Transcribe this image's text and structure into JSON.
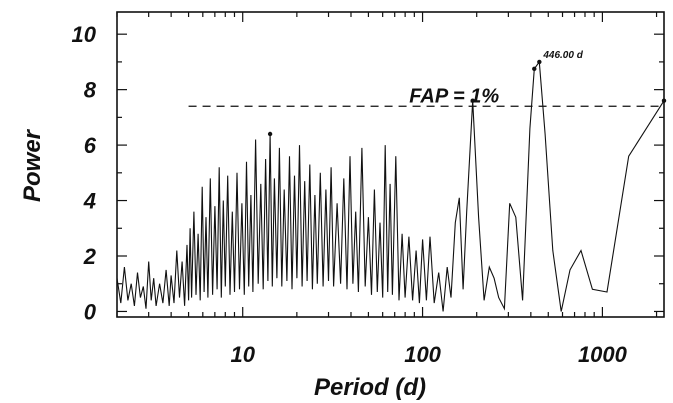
{
  "chart_data": {
    "type": "line",
    "title": "",
    "xlabel": "Period (d)",
    "ylabel": "Power",
    "x_scale": "log",
    "xlim": [
      2,
      2200
    ],
    "ylim": [
      -0.2,
      10.8
    ],
    "x_ticks": [
      {
        "value": 10,
        "label": "10"
      },
      {
        "value": 100,
        "label": "100"
      },
      {
        "value": 1000,
        "label": "1000"
      }
    ],
    "y_ticks": [
      {
        "value": 0,
        "label": "0"
      },
      {
        "value": 2,
        "label": "2"
      },
      {
        "value": 4,
        "label": "4"
      },
      {
        "value": 6,
        "label": "6"
      },
      {
        "value": 8,
        "label": "8"
      },
      {
        "value": 10,
        "label": "10"
      }
    ],
    "threshold": {
      "label": "FAP = 1%",
      "value": 7.4,
      "x_start": 5
    },
    "peak_annotation": {
      "label": "446.00 d",
      "x": 446,
      "y": 9.0
    },
    "series": [
      {
        "values": [
          [
            2.0,
            1.2
          ],
          [
            2.1,
            0.3
          ],
          [
            2.2,
            1.6
          ],
          [
            2.3,
            0.4
          ],
          [
            2.4,
            1.0
          ],
          [
            2.5,
            0.2
          ],
          [
            2.6,
            1.4
          ],
          [
            2.7,
            0.5
          ],
          [
            2.8,
            0.9
          ],
          [
            2.9,
            0.1
          ],
          [
            3.0,
            1.8
          ],
          [
            3.1,
            0.4
          ],
          [
            3.2,
            1.2
          ],
          [
            3.3,
            0.2
          ],
          [
            3.45,
            1.0
          ],
          [
            3.6,
            0.3
          ],
          [
            3.75,
            1.5
          ],
          [
            3.9,
            0.2
          ],
          [
            4.0,
            1.3
          ],
          [
            4.15,
            0.3
          ],
          [
            4.3,
            2.2
          ],
          [
            4.45,
            0.5
          ],
          [
            4.6,
            1.8
          ],
          [
            4.75,
            0.2
          ],
          [
            4.9,
            2.4
          ],
          [
            5.0,
            0.4
          ],
          [
            5.1,
            3.0
          ],
          [
            5.2,
            0.5
          ],
          [
            5.35,
            3.6
          ],
          [
            5.5,
            0.6
          ],
          [
            5.65,
            2.8
          ],
          [
            5.8,
            0.4
          ],
          [
            5.95,
            4.5
          ],
          [
            6.1,
            0.7
          ],
          [
            6.25,
            3.4
          ],
          [
            6.4,
            0.5
          ],
          [
            6.6,
            4.8
          ],
          [
            6.8,
            0.6
          ],
          [
            7.0,
            3.8
          ],
          [
            7.2,
            0.8
          ],
          [
            7.4,
            5.2
          ],
          [
            7.6,
            0.5
          ],
          [
            7.8,
            4.0
          ],
          [
            8.0,
            0.9
          ],
          [
            8.25,
            4.9
          ],
          [
            8.5,
            0.6
          ],
          [
            8.75,
            3.6
          ],
          [
            9.0,
            0.7
          ],
          [
            9.3,
            5.0
          ],
          [
            9.6,
            0.8
          ],
          [
            9.9,
            3.9
          ],
          [
            10.2,
            0.6
          ],
          [
            10.5,
            5.4
          ],
          [
            10.8,
            0.9
          ],
          [
            11.1,
            4.2
          ],
          [
            11.4,
            0.7
          ],
          [
            11.8,
            6.2
          ],
          [
            12.2,
            1.0
          ],
          [
            12.6,
            4.6
          ],
          [
            13.0,
            0.8
          ],
          [
            13.4,
            5.5
          ],
          [
            13.8,
            1.1
          ],
          [
            14.2,
            6.4
          ],
          [
            14.6,
            0.9
          ],
          [
            15.0,
            4.8
          ],
          [
            15.5,
            1.2
          ],
          [
            16.0,
            5.9
          ],
          [
            16.5,
            0.9
          ],
          [
            17.0,
            4.4
          ],
          [
            17.6,
            1.1
          ],
          [
            18.2,
            5.6
          ],
          [
            18.8,
            0.8
          ],
          [
            19.4,
            4.9
          ],
          [
            20.0,
            1.2
          ],
          [
            20.7,
            6.0
          ],
          [
            21.4,
            0.9
          ],
          [
            22.1,
            4.7
          ],
          [
            22.8,
            1.1
          ],
          [
            23.6,
            5.3
          ],
          [
            24.4,
            0.8
          ],
          [
            25.2,
            4.2
          ],
          [
            26.0,
            1.0
          ],
          [
            27.0,
            5.0
          ],
          [
            28.0,
            0.9
          ],
          [
            29.0,
            4.4
          ],
          [
            30.0,
            1.1
          ],
          [
            31.0,
            5.2
          ],
          [
            32.0,
            0.9
          ],
          [
            33.5,
            3.9
          ],
          [
            35.0,
            1.0
          ],
          [
            36.5,
            4.8
          ],
          [
            38.0,
            0.8
          ],
          [
            39.5,
            5.6
          ],
          [
            41.0,
            1.0
          ],
          [
            42.5,
            3.6
          ],
          [
            44.0,
            0.7
          ],
          [
            46.0,
            5.9
          ],
          [
            48.0,
            0.9
          ],
          [
            50.0,
            3.4
          ],
          [
            52.0,
            0.6
          ],
          [
            54.0,
            4.4
          ],
          [
            56.0,
            0.7
          ],
          [
            58.0,
            3.2
          ],
          [
            60.0,
            0.5
          ],
          [
            62.0,
            6.0
          ],
          [
            64.0,
            0.7
          ],
          [
            66.0,
            4.6
          ],
          [
            68.0,
            0.6
          ],
          [
            71.0,
            5.6
          ],
          [
            74.0,
            0.4
          ],
          [
            77.0,
            2.8
          ],
          [
            80.0,
            0.5
          ],
          [
            84.0,
            2.7
          ],
          [
            88.0,
            0.4
          ],
          [
            92.0,
            2.2
          ],
          [
            96.0,
            0.3
          ],
          [
            100.0,
            2.6
          ],
          [
            105.0,
            0.4
          ],
          [
            110.0,
            2.7
          ],
          [
            116.0,
            0.3
          ],
          [
            123.0,
            1.4
          ],
          [
            130.0,
            0.0
          ],
          [
            137.0,
            1.6
          ],
          [
            144.0,
            0.5
          ],
          [
            152.0,
            3.2
          ],
          [
            160.0,
            4.1
          ],
          [
            168.0,
            0.8
          ],
          [
            176.0,
            3.6
          ],
          [
            190.0,
            7.6
          ],
          [
            205.0,
            3.4
          ],
          [
            220.0,
            0.4
          ],
          [
            235.0,
            1.6
          ],
          [
            250.0,
            1.2
          ],
          [
            265.0,
            0.5
          ],
          [
            285.0,
            0.1
          ],
          [
            305.0,
            3.9
          ],
          [
            330.0,
            3.4
          ],
          [
            360.0,
            0.4
          ],
          [
            395.0,
            6.6
          ],
          [
            418.0,
            8.75
          ],
          [
            446.0,
            9.0
          ],
          [
            480.0,
            6.4
          ],
          [
            530.0,
            2.2
          ],
          [
            590.0,
            0.0
          ],
          [
            660.0,
            1.5
          ],
          [
            760.0,
            2.2
          ],
          [
            880.0,
            0.8
          ],
          [
            1060.0,
            0.7
          ],
          [
            1400.0,
            5.6
          ],
          [
            2200.0,
            7.6
          ]
        ]
      }
    ],
    "highlighted_points": [
      [
        14.2,
        6.4
      ],
      [
        190.0,
        7.6
      ],
      [
        418.0,
        8.75
      ],
      [
        446.0,
        9.0
      ],
      [
        2200.0,
        7.6
      ]
    ]
  }
}
